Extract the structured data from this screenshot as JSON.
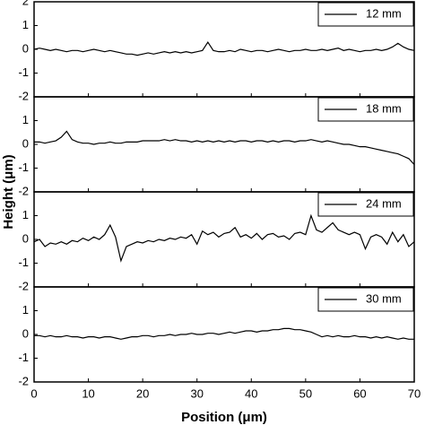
{
  "chart_data": [
    {
      "type": "line",
      "ylabel": "Height (μm)",
      "x": [
        0,
        1,
        2,
        3,
        4,
        5,
        6,
        7,
        8,
        9,
        10,
        11,
        12,
        13,
        14,
        15,
        16,
        17,
        18,
        19,
        20,
        21,
        22,
        23,
        24,
        25,
        26,
        27,
        28,
        29,
        30,
        31,
        32,
        33,
        34,
        35,
        36,
        37,
        38,
        39,
        40,
        41,
        42,
        43,
        44,
        45,
        46,
        47,
        48,
        49,
        50,
        51,
        52,
        53,
        54,
        55,
        56,
        57,
        58,
        59,
        60,
        61,
        62,
        63,
        64,
        65,
        66,
        67,
        68,
        69,
        70
      ],
      "series": [
        {
          "name": "12 mm",
          "color": "#000000",
          "values": [
            0.0,
            0.05,
            0.0,
            -0.05,
            0.0,
            -0.05,
            -0.1,
            -0.05,
            -0.05,
            -0.1,
            -0.05,
            0.0,
            -0.05,
            -0.1,
            -0.05,
            -0.1,
            -0.15,
            -0.2,
            -0.2,
            -0.25,
            -0.2,
            -0.15,
            -0.2,
            -0.15,
            -0.1,
            -0.15,
            -0.1,
            -0.15,
            -0.1,
            -0.15,
            -0.1,
            -0.05,
            0.3,
            -0.05,
            -0.1,
            -0.1,
            -0.05,
            -0.1,
            0.0,
            -0.05,
            -0.1,
            -0.05,
            -0.05,
            -0.1,
            -0.05,
            0.0,
            -0.05,
            -0.1,
            -0.05,
            -0.05,
            0.0,
            -0.05,
            -0.05,
            0.0,
            -0.05,
            0.0,
            0.05,
            -0.05,
            0.0,
            -0.05,
            -0.1,
            -0.05,
            -0.05,
            0.0,
            -0.05,
            0.0,
            0.1,
            0.25,
            0.1,
            0.0,
            -0.05
          ]
        }
      ],
      "xlim": [
        0,
        70
      ],
      "xticks": [
        0,
        10,
        20,
        30,
        40,
        50,
        60,
        70
      ],
      "ylim": [
        -2,
        2
      ],
      "yticks": [
        -2,
        -1,
        0,
        1,
        2
      ],
      "legend": "upper right"
    },
    {
      "type": "line",
      "x": [
        0,
        1,
        2,
        3,
        4,
        5,
        6,
        7,
        8,
        9,
        10,
        11,
        12,
        13,
        14,
        15,
        16,
        17,
        18,
        19,
        20,
        21,
        22,
        23,
        24,
        25,
        26,
        27,
        28,
        29,
        30,
        31,
        32,
        33,
        34,
        35,
        36,
        37,
        38,
        39,
        40,
        41,
        42,
        43,
        44,
        45,
        46,
        47,
        48,
        49,
        50,
        51,
        52,
        53,
        54,
        55,
        56,
        57,
        58,
        59,
        60,
        61,
        62,
        63,
        64,
        65,
        66,
        67,
        68,
        69,
        70
      ],
      "series": [
        {
          "name": "18 mm",
          "color": "#000000",
          "values": [
            0.1,
            0.1,
            0.05,
            0.1,
            0.15,
            0.3,
            0.55,
            0.2,
            0.1,
            0.05,
            0.05,
            0.0,
            0.05,
            0.05,
            0.1,
            0.05,
            0.05,
            0.1,
            0.1,
            0.1,
            0.15,
            0.15,
            0.15,
            0.15,
            0.2,
            0.15,
            0.2,
            0.15,
            0.15,
            0.1,
            0.15,
            0.1,
            0.15,
            0.1,
            0.15,
            0.1,
            0.15,
            0.1,
            0.15,
            0.15,
            0.1,
            0.15,
            0.15,
            0.1,
            0.15,
            0.1,
            0.15,
            0.15,
            0.1,
            0.15,
            0.15,
            0.2,
            0.15,
            0.1,
            0.15,
            0.1,
            0.05,
            0.0,
            0.0,
            -0.05,
            -0.1,
            -0.1,
            -0.15,
            -0.2,
            -0.25,
            -0.3,
            -0.35,
            -0.4,
            -0.5,
            -0.6,
            -0.85
          ]
        }
      ],
      "xlim": [
        0,
        70
      ],
      "xticks": [
        0,
        10,
        20,
        30,
        40,
        50,
        60,
        70
      ],
      "ylim": [
        -2,
        2
      ],
      "yticks": [
        -2,
        -1,
        0,
        1
      ],
      "legend": "upper right"
    },
    {
      "type": "line",
      "x": [
        0,
        1,
        2,
        3,
        4,
        5,
        6,
        7,
        8,
        9,
        10,
        11,
        12,
        13,
        14,
        15,
        16,
        17,
        18,
        19,
        20,
        21,
        22,
        23,
        24,
        25,
        26,
        27,
        28,
        29,
        30,
        31,
        32,
        33,
        34,
        35,
        36,
        37,
        38,
        39,
        40,
        41,
        42,
        43,
        44,
        45,
        46,
        47,
        48,
        49,
        50,
        51,
        52,
        53,
        54,
        55,
        56,
        57,
        58,
        59,
        60,
        61,
        62,
        63,
        64,
        65,
        66,
        67,
        68,
        69,
        70
      ],
      "series": [
        {
          "name": "24 mm",
          "color": "#000000",
          "values": [
            -0.1,
            0.0,
            -0.3,
            -0.15,
            -0.2,
            -0.1,
            -0.2,
            -0.05,
            -0.1,
            0.05,
            -0.05,
            0.1,
            0.0,
            0.2,
            0.6,
            0.1,
            -0.9,
            -0.3,
            -0.2,
            -0.1,
            -0.15,
            -0.05,
            -0.1,
            0.0,
            -0.05,
            0.05,
            0.0,
            0.1,
            0.05,
            0.2,
            -0.2,
            0.35,
            0.2,
            0.3,
            0.1,
            0.25,
            0.3,
            0.5,
            0.1,
            0.2,
            0.05,
            0.25,
            0.0,
            0.2,
            0.25,
            0.1,
            0.15,
            0.0,
            0.25,
            0.3,
            0.2,
            1.0,
            0.4,
            0.3,
            0.5,
            0.7,
            0.4,
            0.3,
            0.2,
            0.3,
            0.2,
            -0.4,
            0.1,
            0.2,
            0.1,
            -0.2,
            0.3,
            -0.1,
            0.2,
            -0.3,
            -0.1
          ]
        }
      ],
      "xlim": [
        0,
        70
      ],
      "xticks": [
        0,
        10,
        20,
        30,
        40,
        50,
        60,
        70
      ],
      "ylim": [
        -2,
        2
      ],
      "yticks": [
        -2,
        -1,
        0,
        1
      ],
      "legend": "upper right"
    },
    {
      "type": "line",
      "xlabel": "Position (μm)",
      "x": [
        0,
        1,
        2,
        3,
        4,
        5,
        6,
        7,
        8,
        9,
        10,
        11,
        12,
        13,
        14,
        15,
        16,
        17,
        18,
        19,
        20,
        21,
        22,
        23,
        24,
        25,
        26,
        27,
        28,
        29,
        30,
        31,
        32,
        33,
        34,
        35,
        36,
        37,
        38,
        39,
        40,
        41,
        42,
        43,
        44,
        45,
        46,
        47,
        48,
        49,
        50,
        51,
        52,
        53,
        54,
        55,
        56,
        57,
        58,
        59,
        60,
        61,
        62,
        63,
        64,
        65,
        66,
        67,
        68,
        69,
        70
      ],
      "series": [
        {
          "name": "30 mm",
          "color": "#000000",
          "values": [
            -0.05,
            -0.05,
            -0.1,
            -0.05,
            -0.1,
            -0.1,
            -0.05,
            -0.1,
            -0.1,
            -0.15,
            -0.1,
            -0.1,
            -0.15,
            -0.1,
            -0.1,
            -0.15,
            -0.2,
            -0.15,
            -0.1,
            -0.1,
            -0.05,
            -0.05,
            -0.1,
            -0.05,
            -0.05,
            0.0,
            -0.05,
            0.0,
            0.0,
            0.05,
            0.0,
            0.0,
            0.05,
            0.05,
            0.0,
            0.05,
            0.1,
            0.05,
            0.1,
            0.15,
            0.15,
            0.1,
            0.15,
            0.15,
            0.2,
            0.2,
            0.25,
            0.25,
            0.2,
            0.2,
            0.15,
            0.1,
            0.0,
            -0.1,
            -0.05,
            -0.1,
            -0.05,
            -0.1,
            -0.1,
            -0.05,
            -0.1,
            -0.1,
            -0.15,
            -0.1,
            -0.15,
            -0.1,
            -0.15,
            -0.2,
            -0.15,
            -0.2,
            -0.2
          ]
        }
      ],
      "xlim": [
        0,
        70
      ],
      "xticks": [
        0,
        10,
        20,
        30,
        40,
        50,
        60,
        70
      ],
      "ylim": [
        -2,
        2
      ],
      "yticks": [
        -2,
        -1,
        0,
        1
      ],
      "legend": "upper right"
    }
  ]
}
